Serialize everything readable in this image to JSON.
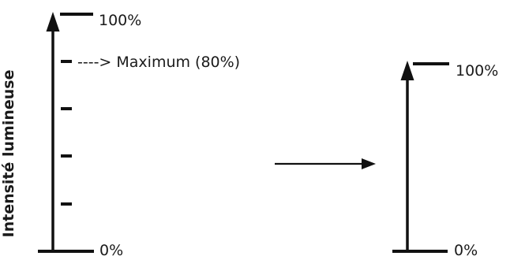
{
  "left_scale": {
    "axis_label": "Intensité lumineuse",
    "top_label": "100%",
    "bottom_label": "0%",
    "max_marker_label": "----> Maximum (80%)",
    "intermediate_ticks": [
      80,
      60,
      40,
      20
    ]
  },
  "right_scale": {
    "top_label": "100%",
    "bottom_label": "0%"
  },
  "colors": {
    "ink": "#111111",
    "text": "#1a1a1a",
    "background": "#ffffff"
  }
}
